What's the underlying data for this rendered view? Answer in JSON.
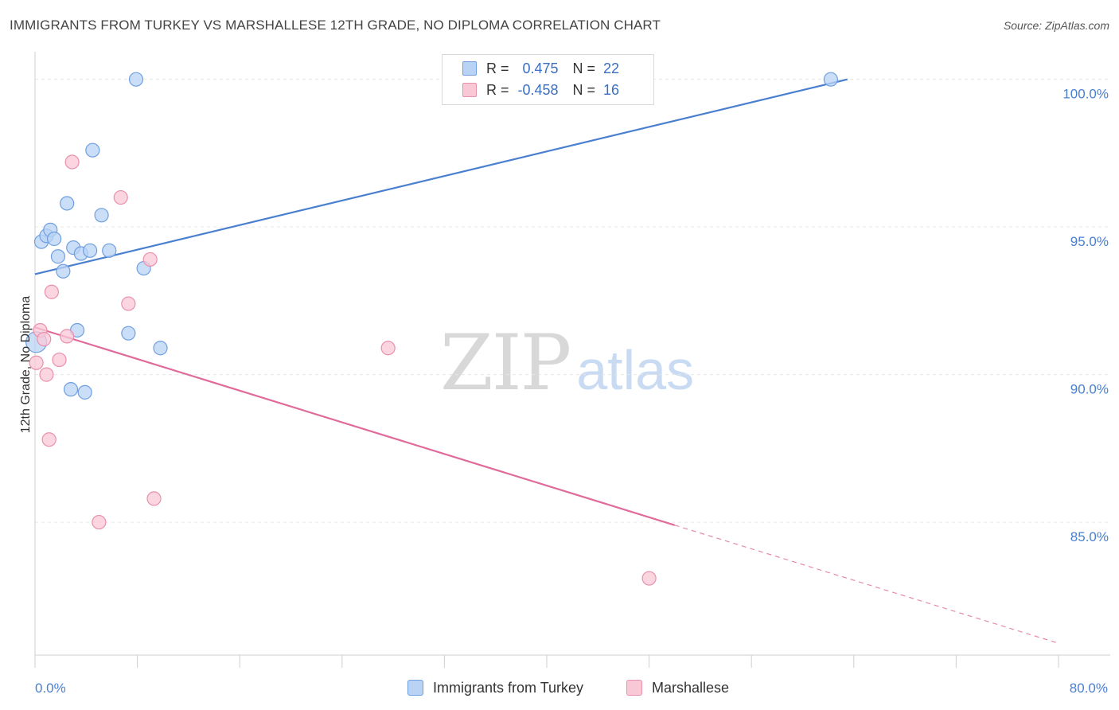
{
  "title": "IMMIGRANTS FROM TURKEY VS MARSHALLESE 12TH GRADE, NO DIPLOMA CORRELATION CHART",
  "source": "Source: ZipAtlas.com",
  "watermark": {
    "zip": "ZIP",
    "atlas": "atlas"
  },
  "legend_stats": [
    {
      "r_label": "R =",
      "r_value": "0.475",
      "n_label": "N =",
      "n_value": "22",
      "color": "#b9d3f5",
      "border": "#6f9fe0"
    },
    {
      "r_label": "R =",
      "r_value": "-0.458",
      "n_label": "N =",
      "n_value": "16",
      "color": "#f9c8d7",
      "border": "#e990ac"
    }
  ],
  "bottom_legend": [
    {
      "label": "Immigrants from Turkey",
      "color": "#b9d3f5",
      "border": "#6f9fe0"
    },
    {
      "label": "Marshallese",
      "color": "#f9c8d7",
      "border": "#e990ac"
    }
  ],
  "chart_data": {
    "type": "scatter",
    "title": "IMMIGRANTS FROM TURKEY VS MARSHALLESE 12TH GRADE, NO DIPLOMA CORRELATION CHART",
    "xlabel": "",
    "ylabel": "12th Grade, No Diploma",
    "xlim": [
      0,
      80
    ],
    "ylim": [
      80.5,
      100.8
    ],
    "x_tick_labels": [
      {
        "value": 0,
        "label": "0.0%"
      },
      {
        "value": 80,
        "label": "80.0%"
      }
    ],
    "x_minor_ticks": [
      0,
      8,
      16,
      24,
      32,
      40,
      48,
      56,
      64,
      72,
      80
    ],
    "y_ticks": [
      {
        "value": 100,
        "label": "100.0%"
      },
      {
        "value": 95,
        "label": "95.0%"
      },
      {
        "value": 90,
        "label": "90.0%"
      },
      {
        "value": 85,
        "label": "85.0%"
      }
    ],
    "grid": true,
    "series": [
      {
        "name": "Immigrants from Turkey",
        "color": "#4a7fd0",
        "fill": "#b9d3f5",
        "stroke": "#6f9fe0",
        "points": [
          {
            "x": 0.1,
            "y": 91.1,
            "big": true
          },
          {
            "x": 0.5,
            "y": 94.5
          },
          {
            "x": 0.9,
            "y": 94.7
          },
          {
            "x": 1.2,
            "y": 94.9
          },
          {
            "x": 1.5,
            "y": 94.6
          },
          {
            "x": 1.8,
            "y": 94.0
          },
          {
            "x": 2.2,
            "y": 93.5
          },
          {
            "x": 2.5,
            "y": 95.8
          },
          {
            "x": 2.8,
            "y": 89.5
          },
          {
            "x": 3.0,
            "y": 94.3
          },
          {
            "x": 3.3,
            "y": 91.5
          },
          {
            "x": 3.6,
            "y": 94.1
          },
          {
            "x": 3.9,
            "y": 89.4
          },
          {
            "x": 4.3,
            "y": 94.2
          },
          {
            "x": 4.5,
            "y": 97.6
          },
          {
            "x": 5.2,
            "y": 95.4
          },
          {
            "x": 5.8,
            "y": 94.2
          },
          {
            "x": 7.3,
            "y": 91.4
          },
          {
            "x": 7.9,
            "y": 100.0
          },
          {
            "x": 8.5,
            "y": 93.6
          },
          {
            "x": 9.8,
            "y": 90.9
          },
          {
            "x": 62.2,
            "y": 100.0
          }
        ],
        "trend": {
          "x0": 0,
          "y0": 93.4,
          "x1": 63.5,
          "y1": 100.0,
          "dashed_to": null
        }
      },
      {
        "name": "Marshallese",
        "color": "#e06b9a",
        "fill": "#f9c8d7",
        "stroke": "#e990ac",
        "points": [
          {
            "x": 0.1,
            "y": 90.4
          },
          {
            "x": 0.4,
            "y": 91.5
          },
          {
            "x": 0.7,
            "y": 91.2
          },
          {
            "x": 0.9,
            "y": 90.0
          },
          {
            "x": 1.1,
            "y": 87.8
          },
          {
            "x": 1.3,
            "y": 92.8
          },
          {
            "x": 1.9,
            "y": 90.5
          },
          {
            "x": 2.5,
            "y": 91.3
          },
          {
            "x": 2.9,
            "y": 97.2
          },
          {
            "x": 5.0,
            "y": 85.0
          },
          {
            "x": 6.7,
            "y": 96.0
          },
          {
            "x": 7.3,
            "y": 92.4
          },
          {
            "x": 9.0,
            "y": 93.9
          },
          {
            "x": 9.3,
            "y": 85.8
          },
          {
            "x": 27.6,
            "y": 90.9
          },
          {
            "x": 48.0,
            "y": 83.1
          }
        ],
        "trend": {
          "x0": 0,
          "y0": 91.6,
          "x1": 50.0,
          "y1": 84.9,
          "dashed_to": {
            "x": 80.0,
            "y": 80.9
          }
        }
      }
    ]
  }
}
